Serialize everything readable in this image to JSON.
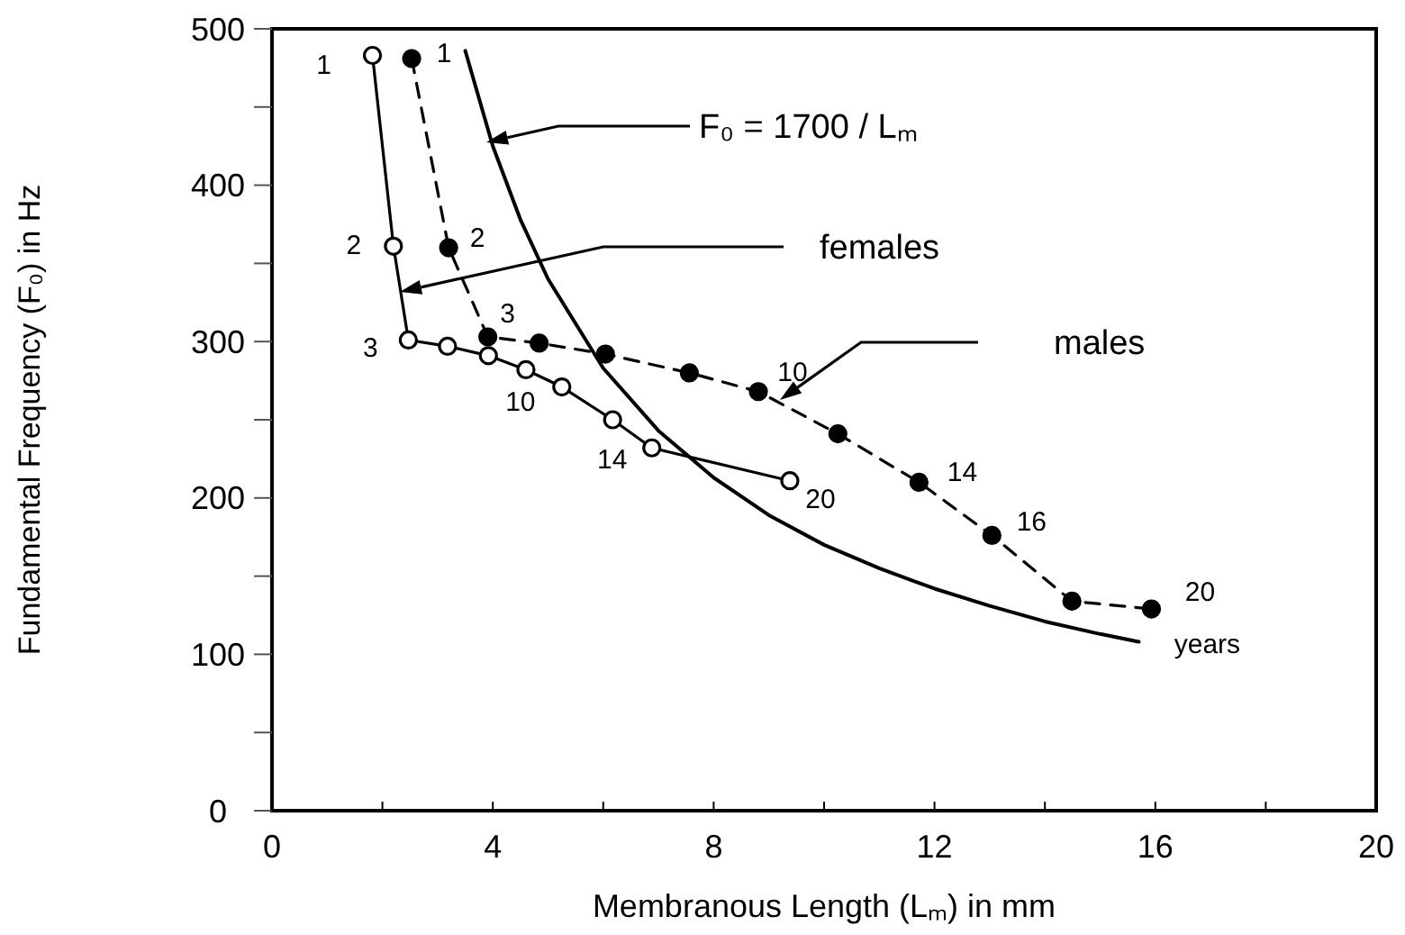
{
  "chart_data": {
    "type": "line",
    "xlabel": "Membranous Length (Lₘ)  in mm",
    "ylabel": "Fundamental Frequency (F₀)  in Hz",
    "xlim": [
      0,
      20
    ],
    "xticks": [
      0,
      {
        "value": 2,
        "label": null
      },
      4,
      {
        "value": 6,
        "label": null
      },
      8,
      {
        "value": 10,
        "label": null
      },
      12,
      {
        "value": 14,
        "label": null
      },
      16,
      {
        "value": 18,
        "label": null
      },
      20
    ],
    "ylim": [
      0,
      500
    ],
    "yticks": [
      0,
      {
        "value": 50,
        "label": null
      },
      100,
      {
        "value": 150,
        "label": null
      },
      200,
      {
        "value": 250,
        "label": null
      },
      300,
      {
        "value": 350,
        "label": null
      },
      400,
      {
        "value": 450,
        "label": null
      },
      500
    ],
    "grid": false,
    "series": [
      {
        "color": "#000000",
        "marker": "circle",
        "line_style": "solid",
        "x": [
          1.82,
          2.2,
          2.47,
          3.18,
          3.92,
          4.6,
          5.25,
          6.17,
          6.88,
          9.38
        ],
        "values": [
          483,
          361,
          301,
          297,
          291,
          282,
          271,
          250,
          232,
          211
        ]
      },
      {
        "color": "#000000",
        "marker": "circle",
        "line_style": "dashed",
        "x": [
          2.53,
          3.2,
          3.91,
          4.84,
          6.04,
          7.56,
          8.81,
          10.25,
          11.72,
          13.04,
          14.49,
          15.93
        ],
        "values": [
          481,
          360,
          303,
          299,
          292,
          280,
          268,
          241,
          210,
          176,
          134,
          129
        ]
      },
      {
        "color": "#000000",
        "marker": "none",
        "line_style": "solid",
        "x": [
          3.5,
          4,
          4.5,
          5,
          6,
          7,
          8,
          9,
          10,
          11,
          12,
          13,
          14,
          15,
          15.7
        ],
        "values": [
          486,
          425,
          378,
          340,
          283,
          243,
          213,
          189,
          170,
          155,
          142,
          131,
          121,
          113,
          108
        ]
      }
    ],
    "annotations": [
      "F₀ = 1700 / Lₘ",
      "females",
      "males",
      {
        "text": "1",
        "x": 1.82,
        "y": 483
      },
      {
        "text": "2",
        "x": 2.2,
        "y": 361
      },
      {
        "text": "3",
        "x": 2.47,
        "y": 301
      },
      {
        "text": "10",
        "x": 5.25,
        "y": 271
      },
      {
        "text": "14",
        "x": 6.88,
        "y": 232
      },
      {
        "text": "20",
        "x": 9.38,
        "y": 211
      },
      {
        "text": "1",
        "x": 2.53,
        "y": 481
      },
      {
        "text": "2",
        "x": 3.2,
        "y": 360
      },
      {
        "text": "3",
        "x": 3.91,
        "y": 303
      },
      {
        "text": "10",
        "x": 8.81,
        "y": 268
      },
      {
        "text": "14",
        "x": 11.72,
        "y": 210
      },
      {
        "text": "16",
        "x": 13.04,
        "y": 176
      },
      {
        "text": "20",
        "x": 15.93,
        "y": 129
      },
      {
        "text": "years",
        "x": 15.7,
        "y": 108
      }
    ]
  }
}
